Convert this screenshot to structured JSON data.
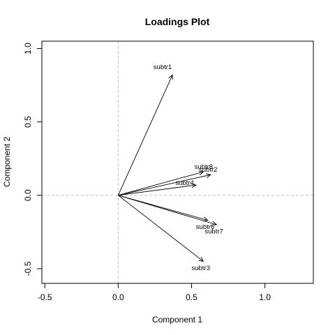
{
  "chart_data": {
    "type": "scatter",
    "title": "Loadings Plot",
    "xlabel": "Component 1",
    "ylabel": "Component 2",
    "xlim": [
      -0.52,
      1.33
    ],
    "ylim": [
      -0.6,
      1.05
    ],
    "xticks": [
      -0.5,
      0.0,
      0.5,
      1.0
    ],
    "yticks": [
      -0.5,
      0.0,
      0.5,
      1.0
    ],
    "xtick_labels": [
      "-0.5",
      "0.0",
      "0.5",
      "1.0"
    ],
    "ytick_labels": [
      "-0.5",
      "0.0",
      "0.5",
      "1.0"
    ],
    "reference_lines": {
      "x": 0,
      "y": 0,
      "style": "dashed",
      "color": "#bebebe"
    },
    "origin": [
      0,
      0
    ],
    "vectors": [
      {
        "label": "subtr1",
        "x": 0.37,
        "y": 0.82
      },
      {
        "label": "subtr2",
        "x": 0.63,
        "y": 0.14
      },
      {
        "label": "subtr3",
        "x": 0.58,
        "y": -0.45
      },
      {
        "label": "subtr4",
        "x": 0.53,
        "y": 0.07
      },
      {
        "label": "subtr6",
        "x": 0.61,
        "y": -0.17
      },
      {
        "label": "subtr7",
        "x": 0.67,
        "y": -0.2
      },
      {
        "label": "subtr8",
        "x": 0.58,
        "y": 0.16
      }
    ],
    "label_offsets": {
      "subtr1": [
        -0.13,
        0.04
      ],
      "subtr2": [
        -0.08,
        0.02
      ],
      "subtr3": [
        -0.08,
        -0.06
      ],
      "subtr4": [
        -0.14,
        0.0
      ],
      "subtr6": [
        -0.08,
        -0.06
      ],
      "subtr7": [
        -0.08,
        -0.06
      ],
      "subtr8": [
        -0.06,
        0.02
      ]
    },
    "grid": false,
    "legend": "none"
  }
}
